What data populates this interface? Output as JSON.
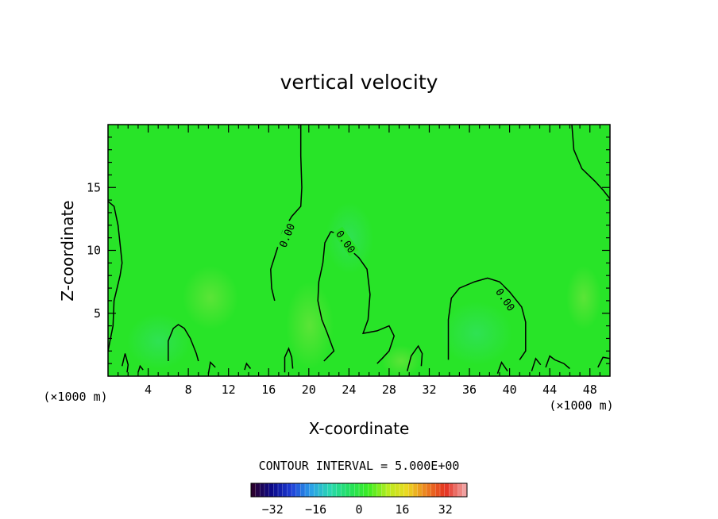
{
  "chart_data": {
    "type": "heatmap",
    "title": "vertical velocity",
    "xlabel": "X-coordinate",
    "ylabel": "Z-coordinate",
    "x_unit": "(×1000 m)",
    "y_unit": "(×1000 m)",
    "xlim": [
      0,
      50
    ],
    "ylim": [
      0,
      20
    ],
    "xticks": [
      4,
      8,
      12,
      16,
      20,
      24,
      28,
      32,
      36,
      40,
      44,
      48
    ],
    "yticks": [
      5,
      10,
      15
    ],
    "contour_interval_text": "CONTOUR INTERVAL = 5.000E+00",
    "contour_label": "0.00",
    "field_value": 0,
    "colorbar": {
      "min": -40,
      "max": 40,
      "ticks": [
        -32,
        -16,
        0,
        16,
        32
      ],
      "colors": [
        "#2a0030",
        "#0a0a8c",
        "#1f3fd8",
        "#2aa0e8",
        "#2ad8b0",
        "#22e060",
        "#3cec20",
        "#b8ec20",
        "#ecd820",
        "#ec8020",
        "#e43020",
        "#f0a0a0"
      ]
    },
    "field_colors": {
      "base": "#28e428",
      "weak_positive": "#5ce43c",
      "weak_negative": "#30e468"
    },
    "zero_contour_lines": [
      [
        [
          0,
          13.9
        ],
        [
          0.6,
          13.5
        ],
        [
          1.0,
          12.0
        ],
        [
          1.2,
          10.5
        ],
        [
          1.4,
          9.0
        ],
        [
          1.2,
          8.0
        ],
        [
          0.6,
          6.0
        ],
        [
          0.5,
          4.0
        ],
        [
          0.2,
          2.8
        ],
        [
          0,
          2.0
        ]
      ],
      [
        [
          19.2,
          20
        ],
        [
          19.2,
          17.5
        ],
        [
          19.3,
          15.0
        ],
        [
          19.2,
          13.5
        ],
        [
          18.3,
          12.7
        ],
        [
          17.4,
          11.5
        ],
        [
          16.8,
          10.0
        ],
        [
          16.2,
          8.5
        ],
        [
          16.3,
          7.0
        ],
        [
          16.6,
          6.0
        ]
      ],
      [
        [
          22.2,
          11.5
        ],
        [
          21.6,
          10.6
        ],
        [
          21.4,
          9.0
        ],
        [
          21.0,
          7.5
        ],
        [
          20.9,
          6.0
        ],
        [
          21.3,
          4.5
        ],
        [
          21.8,
          3.5
        ],
        [
          22.5,
          2.0
        ],
        [
          21.5,
          1.2
        ]
      ],
      [
        [
          22.2,
          11.5
        ],
        [
          22.8,
          11.3
        ],
        [
          23.8,
          10.3
        ],
        [
          25.0,
          9.4
        ],
        [
          25.8,
          8.5
        ],
        [
          26.1,
          6.5
        ],
        [
          25.9,
          4.5
        ],
        [
          25.4,
          3.4
        ],
        [
          26.8,
          3.6
        ],
        [
          28.0,
          4.0
        ],
        [
          28.5,
          3.2
        ],
        [
          28.0,
          2.0
        ],
        [
          27.3,
          1.4
        ],
        [
          26.8,
          1.0
        ]
      ],
      [
        [
          33.9,
          1.3
        ],
        [
          33.9,
          4.5
        ],
        [
          34.2,
          6.2
        ],
        [
          35.0,
          7.0
        ],
        [
          36.5,
          7.5
        ],
        [
          37.8,
          7.8
        ],
        [
          39.0,
          7.5
        ],
        [
          40.0,
          6.7
        ],
        [
          41.2,
          5.5
        ],
        [
          41.6,
          4.3
        ],
        [
          41.6,
          2.0
        ],
        [
          41.0,
          1.3
        ]
      ],
      [
        [
          46.2,
          20
        ],
        [
          46.4,
          18.0
        ],
        [
          47.2,
          16.5
        ],
        [
          48.5,
          15.5
        ],
        [
          49.3,
          14.8
        ],
        [
          50,
          14.1
        ]
      ],
      [
        [
          6.0,
          1.2
        ],
        [
          6.0,
          2.8
        ],
        [
          6.5,
          3.8
        ],
        [
          7.0,
          4.1
        ],
        [
          7.6,
          3.8
        ],
        [
          8.2,
          3.0
        ],
        [
          8.8,
          1.8
        ],
        [
          9.0,
          1.2
        ]
      ],
      [
        [
          13.6,
          0.5
        ],
        [
          13.8,
          1.0
        ],
        [
          14.2,
          0.6
        ]
      ],
      [
        [
          17.6,
          0.3
        ],
        [
          17.6,
          1.5
        ],
        [
          18.0,
          2.2
        ],
        [
          18.3,
          1.5
        ],
        [
          18.4,
          0.6
        ]
      ],
      [
        [
          29.8,
          0.4
        ],
        [
          30.2,
          1.6
        ],
        [
          30.9,
          2.4
        ],
        [
          31.3,
          1.8
        ],
        [
          31.2,
          0.8
        ]
      ],
      [
        [
          1.4,
          0.8
        ],
        [
          1.7,
          1.8
        ],
        [
          2.0,
          0.9
        ],
        [
          1.9,
          0.3
        ]
      ],
      [
        [
          43.6,
          0.7
        ],
        [
          44.0,
          1.6
        ],
        [
          44.5,
          1.3
        ],
        [
          45.4,
          1.0
        ],
        [
          46.0,
          0.6
        ]
      ],
      [
        [
          48.8,
          0.7
        ],
        [
          49.3,
          1.5
        ],
        [
          50,
          1.4
        ]
      ],
      [
        [
          3.0,
          0.3
        ],
        [
          3.2,
          0.8
        ],
        [
          3.5,
          0.5
        ]
      ],
      [
        [
          10.0,
          0.2
        ],
        [
          10.2,
          1.1
        ],
        [
          10.7,
          0.7
        ]
      ],
      [
        [
          38.8,
          0.2
        ],
        [
          39.2,
          1.1
        ],
        [
          39.8,
          0.4
        ]
      ],
      [
        [
          42.2,
          0.4
        ],
        [
          42.6,
          1.4
        ],
        [
          43.1,
          0.9
        ]
      ]
    ],
    "zero_contour_labels": [
      [
        17.8,
        11.2,
        -68
      ],
      [
        23.7,
        10.7,
        55
      ],
      [
        39.6,
        6.1,
        55
      ]
    ]
  }
}
